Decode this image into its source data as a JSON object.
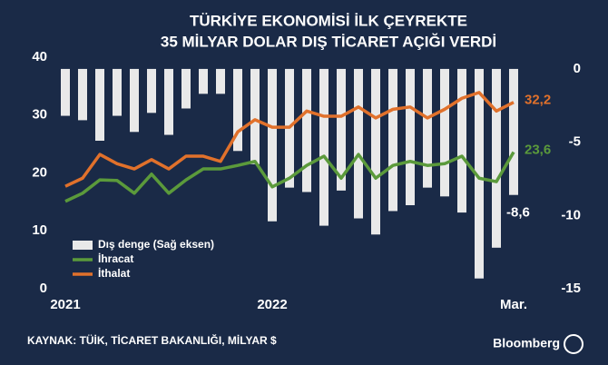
{
  "chart_data": {
    "type": "combo",
    "title": [
      "TÜRKİYE EKONOMİSİ İLK ÇEYREKTE",
      "35 MİLYAR DOLAR DIŞ TİCARET AÇIĞI VERDİ"
    ],
    "source": "KAYNAK: TÜİK, TİCARET BAKANLIĞI, MİLYAR $",
    "logo": "Bloomberg",
    "categories": [
      "2021",
      null,
      null,
      null,
      null,
      null,
      null,
      null,
      null,
      null,
      null,
      null,
      "2022",
      null,
      null,
      null,
      null,
      null,
      null,
      null,
      null,
      null,
      null,
      null,
      null,
      null,
      "Mar."
    ],
    "ylim": [
      0,
      40
    ],
    "yticks": [
      0,
      10,
      20,
      30,
      40
    ],
    "y2lim": [
      -15,
      0.8
    ],
    "y2ticks": [
      0,
      -5,
      -10,
      -15
    ],
    "series": [
      {
        "name": "Dış denge (Sağ eksen)",
        "type": "bar",
        "axis": "y2",
        "color": "#e9e9e9",
        "values": [
          -3.2,
          -3.5,
          -4.9,
          -3.2,
          -4.3,
          -3.0,
          -4.5,
          -2.7,
          -1.7,
          -1.7,
          -5.6,
          -6.5,
          -10.4,
          -8.1,
          -8.4,
          -10.7,
          -8.3,
          -10.2,
          -11.3,
          -9.7,
          -9.3,
          -8.1,
          -8.7,
          -9.8,
          -14.3,
          -12.2,
          -8.6
        ],
        "value_labels": [
          null,
          null,
          null,
          null,
          null,
          null,
          null,
          null,
          null,
          null,
          null,
          null,
          null,
          null,
          null,
          null,
          null,
          null,
          null,
          null,
          null,
          null,
          null,
          null,
          null,
          null,
          "-8,6"
        ]
      },
      {
        "name": "İhracat",
        "type": "line",
        "color": "#5b9a3b",
        "values": [
          15.1,
          16.5,
          18.8,
          18.7,
          16.5,
          19.8,
          16.5,
          18.8,
          20.7,
          20.7,
          21.3,
          22.0,
          17.6,
          19.1,
          21.3,
          22.9,
          19.1,
          23.2,
          19.1,
          21.3,
          22.0,
          21.3,
          21.6,
          22.9,
          19.1,
          18.5,
          23.6
        ],
        "value_labels": [
          null,
          null,
          null,
          null,
          null,
          null,
          null,
          null,
          null,
          null,
          null,
          null,
          null,
          null,
          null,
          null,
          null,
          null,
          null,
          null,
          null,
          null,
          null,
          null,
          null,
          null,
          "23,6"
        ]
      },
      {
        "name": "İthalat",
        "type": "line",
        "color": "#e1712b",
        "values": [
          17.7,
          19.1,
          23.2,
          21.6,
          20.7,
          22.3,
          20.7,
          22.9,
          22.9,
          22.0,
          27.1,
          29.2,
          27.9,
          27.9,
          30.7,
          29.8,
          29.8,
          31.4,
          29.5,
          31.0,
          31.4,
          29.5,
          31.0,
          32.9,
          33.9,
          30.7,
          32.2
        ],
        "value_labels": [
          null,
          null,
          null,
          null,
          null,
          null,
          null,
          null,
          null,
          null,
          null,
          null,
          null,
          null,
          null,
          null,
          null,
          null,
          null,
          null,
          null,
          null,
          null,
          null,
          null,
          null,
          "32,2"
        ]
      }
    ]
  }
}
